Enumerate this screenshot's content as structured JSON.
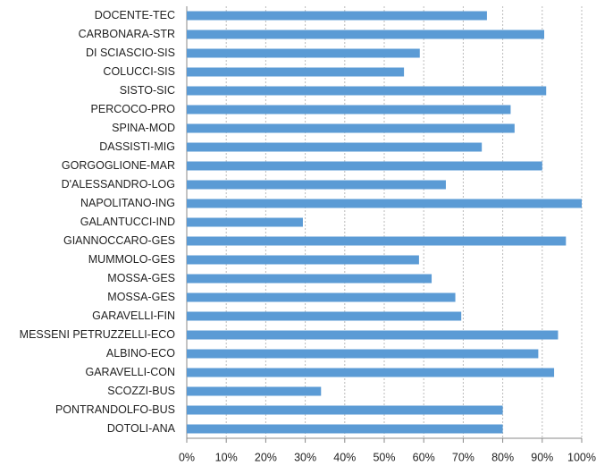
{
  "chart_data": {
    "type": "bar",
    "orientation": "horizontal",
    "categories": [
      "DOCENTE-TEC",
      "CARBONARA-STR",
      "DI SCIASCIO-SIS",
      "COLUCCI-SIS",
      "SISTO-SIC",
      "PERCOCO-PRO",
      "SPINA-MOD",
      "DASSISTI-MIG",
      "GORGOGLIONE-MAR",
      "D'ALESSANDRO-LOG",
      "NAPOLITANO-ING",
      "GALANTUCCI-IND",
      "GIANNOCCARO-GES",
      "MUMMOLO-GES",
      "MOSSA-GES",
      "MOSSA-GES",
      "GARAVELLI-FIN",
      "MESSENI PETRUZZELLI-ECO",
      "ALBINO-ECO",
      "GARAVELLI-CON",
      "SCOZZI-BUS",
      "PONTRANDOLFO-BUS",
      "DOTOLI-ANA"
    ],
    "values": [
      76,
      90.5,
      59,
      55,
      91,
      82,
      83,
      74.7,
      90,
      65.6,
      100,
      29.4,
      96,
      58.8,
      62,
      68,
      69.5,
      94,
      89,
      93,
      34,
      80,
      80
    ],
    "color": "#5b9bd5",
    "xlim": [
      0,
      100
    ],
    "xticks": [
      {
        "value": 0,
        "label": "0%"
      },
      {
        "value": 10,
        "label": "10%"
      },
      {
        "value": 20,
        "label": "20%"
      },
      {
        "value": 30,
        "label": "30%"
      },
      {
        "value": 40,
        "label": "40%"
      },
      {
        "value": 50,
        "label": "50%"
      },
      {
        "value": 60,
        "label": "60%"
      },
      {
        "value": 70,
        "label": "70%"
      },
      {
        "value": 80,
        "label": "80%"
      },
      {
        "value": 90,
        "label": "90%"
      },
      {
        "value": 100,
        "label": "100%"
      }
    ],
    "grid": true
  }
}
